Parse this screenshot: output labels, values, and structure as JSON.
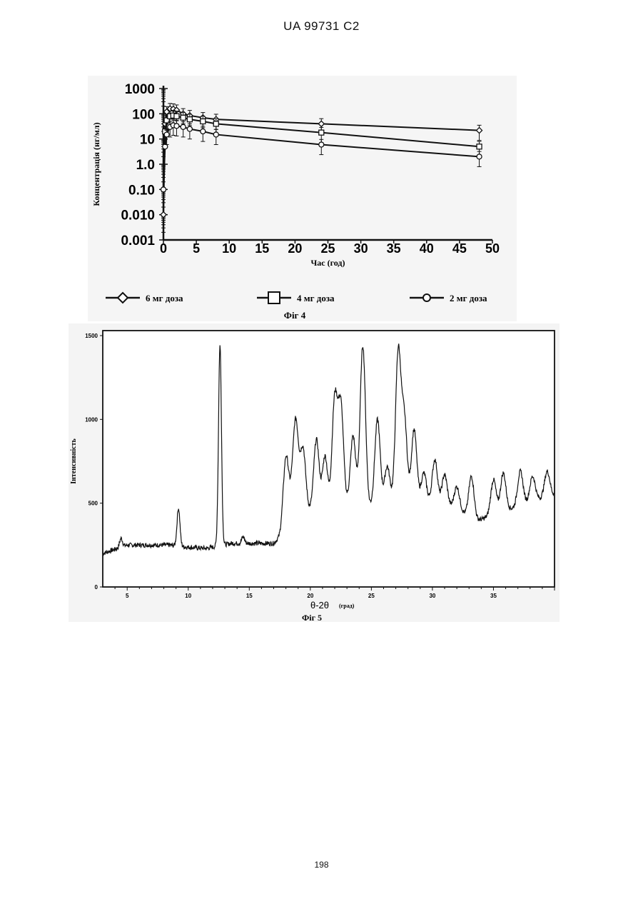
{
  "header": {
    "doc_id": "UA   99731   C2"
  },
  "footer": {
    "page_number": "198"
  },
  "chart_data": [
    {
      "type": "line",
      "figure_label": "Фіг 4",
      "xlabel": "Час (год)",
      "ylabel": "Концентрація (нг/мл)",
      "xlim": [
        0,
        50
      ],
      "ylim": [
        0.001,
        1000
      ],
      "yscale": "log",
      "x_ticks": [
        "0",
        "5",
        "10",
        "15",
        "20",
        "25",
        "30",
        "35",
        "40",
        "45",
        "50"
      ],
      "y_ticks": [
        "1000",
        "100",
        "10",
        "1.0",
        "0.10",
        "0.010",
        "0.001"
      ],
      "legend_position": "bottom",
      "series": [
        {
          "name": "6 мг доза",
          "marker": "diamond",
          "x": [
            0,
            0.25,
            0.5,
            1,
            1.5,
            2,
            3,
            4,
            6,
            8,
            24,
            48
          ],
          "y": [
            0.01,
            40,
            120,
            160,
            155,
            140,
            100,
            85,
            70,
            60,
            40,
            22
          ]
        },
        {
          "name": "4 мг доза",
          "marker": "square",
          "x": [
            0.25,
            0.5,
            1,
            1.5,
            2,
            3,
            4,
            6,
            8,
            24,
            48
          ],
          "y": [
            20,
            55,
            80,
            85,
            80,
            70,
            60,
            50,
            40,
            18,
            5
          ]
        },
        {
          "name": "2 мг доза",
          "marker": "circle",
          "x": [
            0,
            0.25,
            0.5,
            1,
            1.5,
            2,
            3,
            4,
            6,
            8,
            24,
            48
          ],
          "y": [
            0.1,
            5,
            15,
            30,
            35,
            33,
            30,
            25,
            20,
            15,
            6,
            2
          ]
        }
      ]
    },
    {
      "type": "line",
      "figure_label": "Фіг 5",
      "xlabel": "θ-2θ",
      "xlabel_unit": "(град)",
      "ylabel": "Інтенсивність",
      "xlim": [
        3,
        40
      ],
      "ylim": [
        0,
        1500
      ],
      "x_ticks": [
        "5",
        "10",
        "15",
        "20",
        "25",
        "30",
        "35"
      ],
      "y_ticks": [
        "1500",
        "1000",
        "500",
        "0"
      ],
      "baseline": [
        [
          3,
          200
        ],
        [
          5,
          250
        ],
        [
          8.5,
          250
        ],
        [
          9.5,
          240
        ],
        [
          11.5,
          230
        ],
        [
          13.5,
          260
        ],
        [
          17,
          260
        ],
        [
          17.5,
          300
        ],
        [
          18.5,
          520
        ],
        [
          19.5,
          460
        ],
        [
          21,
          440
        ],
        [
          23,
          490
        ],
        [
          24.5,
          470
        ],
        [
          25.5,
          490
        ],
        [
          26.5,
          500
        ],
        [
          27.5,
          510
        ],
        [
          30,
          490
        ],
        [
          32,
          470
        ],
        [
          33.5,
          390
        ],
        [
          35,
          430
        ],
        [
          37,
          480
        ],
        [
          38.5,
          520
        ],
        [
          40,
          550
        ]
      ],
      "peaks": [
        {
          "x": 4.5,
          "y": 290
        },
        {
          "x": 9.2,
          "y": 470
        },
        {
          "x": 12.6,
          "y": 1440
        },
        {
          "x": 14.5,
          "y": 300
        },
        {
          "x": 18.0,
          "y": 780
        },
        {
          "x": 18.8,
          "y": 1000
        },
        {
          "x": 19.4,
          "y": 830
        },
        {
          "x": 20.5,
          "y": 880
        },
        {
          "x": 21.2,
          "y": 780
        },
        {
          "x": 22.0,
          "y": 1120
        },
        {
          "x": 22.5,
          "y": 1080
        },
        {
          "x": 23.5,
          "y": 900
        },
        {
          "x": 24.3,
          "y": 1440
        },
        {
          "x": 25.5,
          "y": 1000
        },
        {
          "x": 26.3,
          "y": 720
        },
        {
          "x": 27.2,
          "y": 1400
        },
        {
          "x": 27.7,
          "y": 1000
        },
        {
          "x": 28.5,
          "y": 940
        },
        {
          "x": 29.3,
          "y": 680
        },
        {
          "x": 30.2,
          "y": 760
        },
        {
          "x": 31.0,
          "y": 670
        },
        {
          "x": 32.0,
          "y": 600
        },
        {
          "x": 33.2,
          "y": 660
        },
        {
          "x": 35.0,
          "y": 640
        },
        {
          "x": 35.8,
          "y": 680
        },
        {
          "x": 37.2,
          "y": 690
        },
        {
          "x": 38.2,
          "y": 660
        },
        {
          "x": 39.4,
          "y": 690
        }
      ]
    }
  ]
}
